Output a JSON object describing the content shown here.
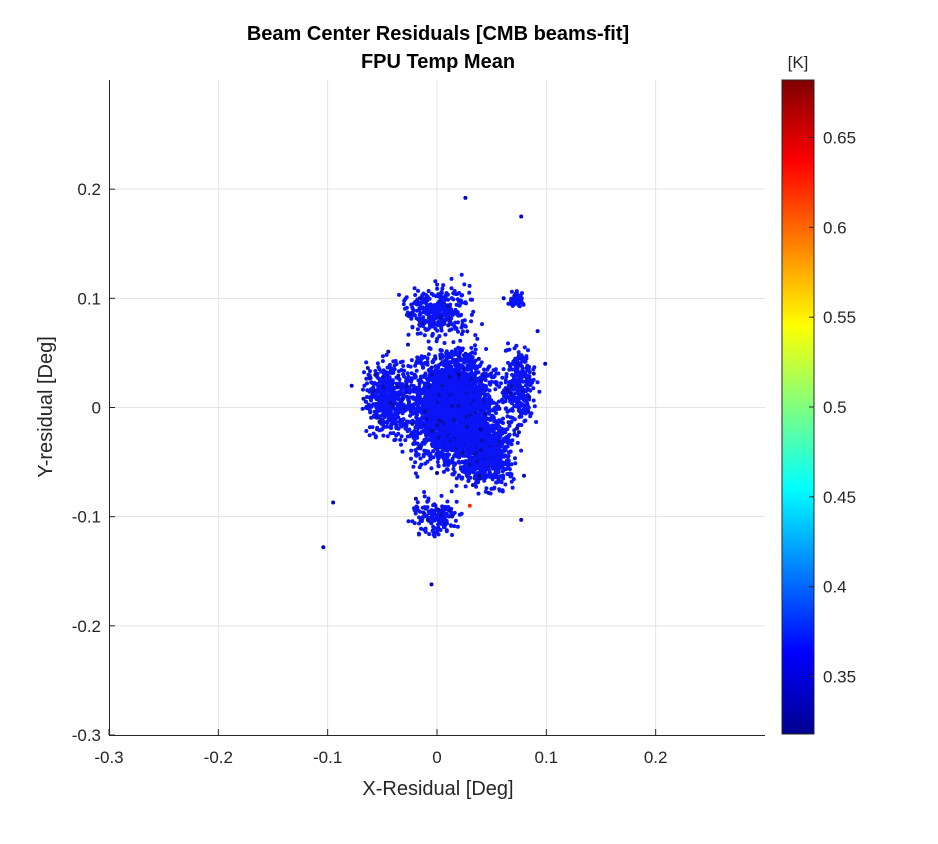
{
  "chart_data": {
    "type": "scatter",
    "title": "Beam Center Residuals [CMB beams-fit]",
    "subtitle": "FPU Temp Mean",
    "xlabel": "X-Residual [Deg]",
    "ylabel": "Y-residual [Deg]",
    "xlim": [
      -0.3,
      0.3
    ],
    "ylim": [
      -0.3,
      0.3
    ],
    "xticks": [
      "-0.3",
      "-0.2",
      "-0.1",
      "0",
      "0.1",
      "0.2"
    ],
    "yticks": [
      "-0.3",
      "-0.2",
      "-0.1",
      "0",
      "0.1",
      "0.2"
    ],
    "grid": true,
    "colormap": "jet",
    "colorbar": {
      "label": "[K]",
      "range": [
        0.318,
        0.682
      ],
      "ticks": [
        "0.35",
        "0.4",
        "0.45",
        "0.5",
        "0.55",
        "0.6",
        "0.65"
      ]
    },
    "point_color_typical": "#0a14f5",
    "points_sample": [
      {
        "x": 0.026,
        "y": 0.192,
        "c": 0.35
      },
      {
        "x": 0.077,
        "y": 0.175,
        "c": 0.35
      },
      {
        "x": -0.104,
        "y": -0.128,
        "c": 0.35
      },
      {
        "x": -0.095,
        "y": -0.087,
        "c": 0.35
      },
      {
        "x": -0.005,
        "y": -0.162,
        "c": 0.35
      },
      {
        "x": 0.077,
        "y": -0.103,
        "c": 0.35
      },
      {
        "x": 0.092,
        "y": 0.07,
        "c": 0.35
      },
      {
        "x": 0.099,
        "y": 0.04,
        "c": 0.35
      },
      {
        "x": -0.078,
        "y": 0.02,
        "c": 0.35
      },
      {
        "x": 0.061,
        "y": 0.1,
        "c": 0.35
      },
      {
        "x": 0.03,
        "y": -0.09,
        "c": 0.62
      },
      {
        "x": 0.02,
        "y": 0.03,
        "c": 0.33
      },
      {
        "x": 0.0,
        "y": -0.06,
        "c": 0.33
      },
      {
        "x": 0.04,
        "y": -0.02,
        "c": 0.33
      }
    ]
  }
}
